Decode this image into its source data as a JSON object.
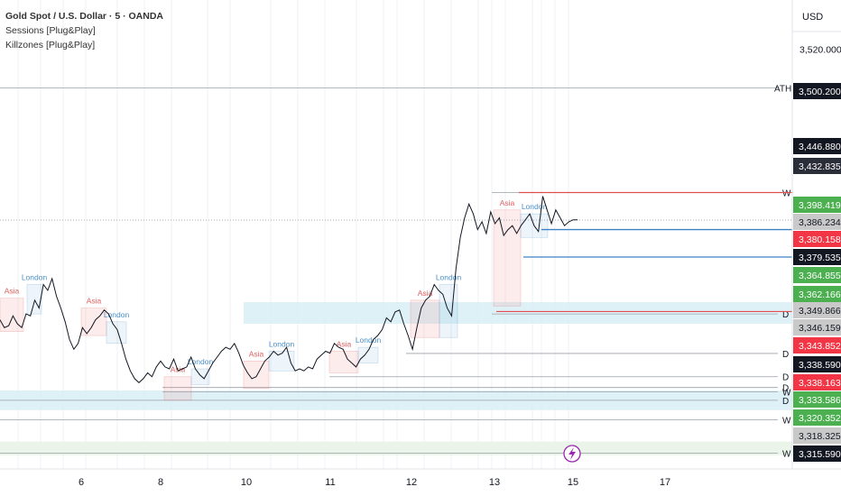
{
  "header": {
    "title": "Gold Spot / U.S. Dollar · 5 · OANDA",
    "indicators": [
      "Sessions [Plug&Play]",
      "Killzones [Plug&Play]"
    ]
  },
  "currency": "USD",
  "chart_data": {
    "type": "line",
    "title": "Gold Spot / U.S. Dollar · 5 · OANDA",
    "ylim": [
      3306,
      3545
    ],
    "y_ticks": [
      3520,
      3470
    ],
    "x_ticks": [
      "6",
      "8",
      "10",
      "11",
      "12",
      "13",
      "15",
      "17"
    ],
    "series": [
      {
        "values": [
          3382,
          3378,
          3379,
          3384,
          3380,
          3378,
          3385,
          3384,
          3392,
          3388,
          3400,
          3397,
          3403,
          3394,
          3388,
          3381,
          3372,
          3367,
          3370,
          3378,
          3375,
          3378,
          3382,
          3384,
          3387,
          3385,
          3380,
          3377,
          3370,
          3362,
          3356,
          3352,
          3350,
          3352,
          3355,
          3353,
          3358,
          3361,
          3358,
          3357,
          3362,
          3356,
          3357,
          3358,
          3363,
          3357,
          3354,
          3352,
          3356,
          3360,
          3363,
          3366,
          3368,
          3367,
          3370,
          3365,
          3359,
          3355,
          3352,
          3353,
          3357,
          3361,
          3363,
          3366,
          3364,
          3365,
          3368,
          3360,
          3356,
          3357,
          3356,
          3358,
          3357,
          3362,
          3364,
          3366,
          3365,
          3370,
          3368,
          3367,
          3362,
          3360,
          3358,
          3362,
          3364,
          3367,
          3372,
          3374,
          3377,
          3383,
          3381,
          3386,
          3387,
          3380,
          3374,
          3367,
          3378,
          3388,
          3392,
          3394,
          3400,
          3397,
          3395,
          3388,
          3384,
          3408,
          3424,
          3434,
          3441,
          3436,
          3428,
          3432,
          3426,
          3437,
          3431,
          3434,
          3425,
          3428,
          3430,
          3426,
          3430,
          3433,
          3436,
          3430,
          3427,
          3445,
          3438,
          3431,
          3438,
          3434,
          3430,
          3432,
          3433,
          3433
        ]
      }
    ],
    "sessions": [
      {
        "label": "Asia",
        "color": "#e06060"
      },
      {
        "label": "London",
        "color": "#4a90c8"
      },
      {
        "label": "Asia",
        "color": "#e06060"
      },
      {
        "label": "London",
        "color": "#4a90c8"
      },
      {
        "label": "Asia",
        "color": "#e06060"
      },
      {
        "label": "London",
        "color": "#4a90c8"
      },
      {
        "label": "Asia",
        "color": "#e06060"
      },
      {
        "label": "London",
        "color": "#4a90c8"
      },
      {
        "label": "Asia",
        "color": "#e06060"
      },
      {
        "label": "London",
        "color": "#4a90c8"
      },
      {
        "label": "Asia",
        "color": "#e06060"
      },
      {
        "label": "London",
        "color": "#4a90c8"
      },
      {
        "label": "Asia",
        "color": "#e06060"
      },
      {
        "label": "London",
        "color": "#4a90c8"
      }
    ],
    "levels": [
      {
        "label": "ATH",
        "price": 3500.2
      },
      {
        "label": "W",
        "price": 3446.88
      },
      {
        "label": "D",
        "price": 3385.0
      },
      {
        "label": "D",
        "price": 3364.855
      },
      {
        "label": "D",
        "price": 3353.0
      },
      {
        "label": "D",
        "price": 3347.5
      },
      {
        "label": "W",
        "price": 3345.3
      },
      {
        "label": "D",
        "price": 3341.0
      },
      {
        "label": "W",
        "price": 3331.0
      },
      {
        "label": "W",
        "price": 3314.0
      }
    ],
    "price_labels": [
      {
        "value": "3,500.200",
        "bg": "#131722",
        "fg": "#ffffff"
      },
      {
        "value": "3,446.880",
        "bg": "#131722",
        "fg": "#ffffff"
      },
      {
        "value": "3,432.835",
        "bg": "#2a2e39",
        "fg": "#ffffff"
      },
      {
        "value": "3,398.419",
        "bg": "#4caf50",
        "fg": "#ffffff"
      },
      {
        "value": "3,386.234",
        "bg": "#c9c9c9",
        "fg": "#131722"
      },
      {
        "value": "3,380.158",
        "bg": "#f23645",
        "fg": "#ffffff"
      },
      {
        "value": "3,379.535",
        "bg": "#131722",
        "fg": "#ffffff"
      },
      {
        "value": "3,364.855",
        "bg": "#4caf50",
        "fg": "#ffffff"
      },
      {
        "value": "3,362.166",
        "bg": "#4caf50",
        "fg": "#ffffff"
      },
      {
        "value": "3,349.866",
        "bg": "#c9c9c9",
        "fg": "#131722"
      },
      {
        "value": "3,346.159",
        "bg": "#c9c9c9",
        "fg": "#131722"
      },
      {
        "value": "3,343.852",
        "bg": "#f23645",
        "fg": "#ffffff"
      },
      {
        "value": "3,338.590",
        "bg": "#131722",
        "fg": "#ffffff"
      },
      {
        "value": "3,338.163",
        "bg": "#f23645",
        "fg": "#ffffff"
      },
      {
        "value": "3,333.586",
        "bg": "#4caf50",
        "fg": "#ffffff"
      },
      {
        "value": "3,320.352",
        "bg": "#4caf50",
        "fg": "#ffffff"
      },
      {
        "value": "3,318.325",
        "bg": "#c9c9c9",
        "fg": "#131722"
      },
      {
        "value": "3,315.590",
        "bg": "#131722",
        "fg": "#ffffff"
      }
    ],
    "colors": {
      "line": "#131722",
      "asia": "#e06060",
      "london": "#4a90c8",
      "zone_blue": "#d6eef5",
      "zone_green": "#e8f3e6",
      "level_red": "#e05050",
      "level_blue": "#3d82c4",
      "lightning": "#9c27b0"
    },
    "grid": "vertical dotted"
  }
}
